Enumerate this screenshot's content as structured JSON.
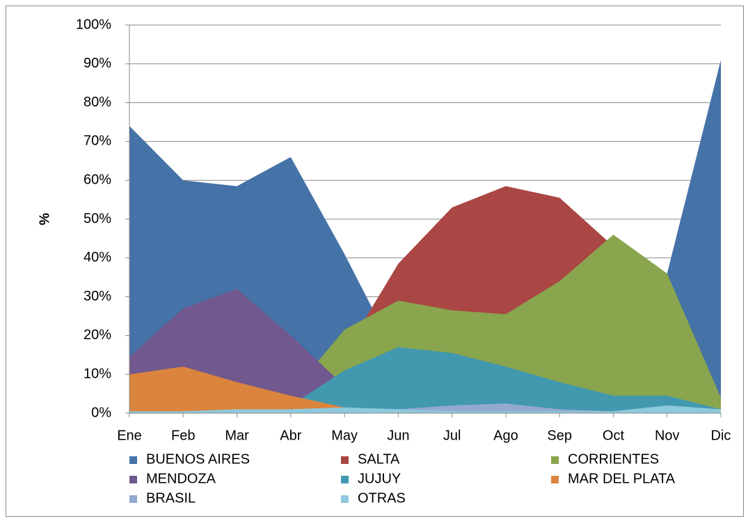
{
  "chart_data": {
    "type": "area",
    "ylabel": "%",
    "categories": [
      "Ene",
      "Feb",
      "Mar",
      "Abr",
      "May",
      "Jun",
      "Jul",
      "Ago",
      "Sep",
      "Oct",
      "Nov",
      "Dic"
    ],
    "series": [
      {
        "name": "BUENOS AIRES",
        "color": "#4572a7",
        "values": [
          74,
          60,
          58.5,
          66,
          41,
          14,
          10,
          8,
          10,
          20,
          36,
          91
        ]
      },
      {
        "name": "SALTA",
        "color": "#aa4643",
        "values": [
          0,
          0,
          0,
          0,
          15.5,
          38.5,
          53,
          58.5,
          55.5,
          43,
          5,
          0
        ]
      },
      {
        "name": "CORRIENTES",
        "color": "#89a54e",
        "values": [
          0,
          0,
          0,
          5,
          21.5,
          29,
          26.5,
          25.5,
          34,
          46,
          36,
          4
        ]
      },
      {
        "name": "MENDOZA",
        "color": "#71588f",
        "values": [
          14.5,
          27,
          32,
          20,
          7,
          0,
          0,
          0,
          0,
          0,
          0,
          0
        ]
      },
      {
        "name": "JUJUY",
        "color": "#4198af",
        "values": [
          0,
          0,
          0,
          2,
          11,
          17,
          15.5,
          12,
          8,
          4.5,
          4.5,
          1
        ]
      },
      {
        "name": "MAR DEL PLATA",
        "color": "#db843d",
        "values": [
          10,
          12,
          8,
          4.5,
          1.5,
          0,
          0,
          0,
          0,
          0,
          0,
          0
        ]
      },
      {
        "name": "BRASIL",
        "color": "#93a9cf",
        "values": [
          0,
          0,
          0.5,
          0.5,
          1,
          1,
          2,
          2.5,
          1,
          0.5,
          0.5,
          0
        ]
      },
      {
        "name": "OTRAS",
        "color": "#8ec9dc",
        "values": [
          0.5,
          0.5,
          1,
          1,
          1.5,
          1,
          0.5,
          0.5,
          0.5,
          0.5,
          2,
          1
        ]
      }
    ],
    "ylim": [
      0,
      100
    ],
    "yticks": [
      {
        "value": 0,
        "label": "0%"
      },
      {
        "value": 10,
        "label": "10%"
      },
      {
        "value": 20,
        "label": "20%"
      },
      {
        "value": 30,
        "label": "30%"
      },
      {
        "value": 40,
        "label": "40%"
      },
      {
        "value": 50,
        "label": "50%"
      },
      {
        "value": 60,
        "label": "60%"
      },
      {
        "value": 70,
        "label": "70%"
      },
      {
        "value": 80,
        "label": "80%"
      },
      {
        "value": 90,
        "label": "90%"
      },
      {
        "value": 100,
        "label": "100%"
      }
    ],
    "grid": true,
    "legend": "bottom"
  }
}
